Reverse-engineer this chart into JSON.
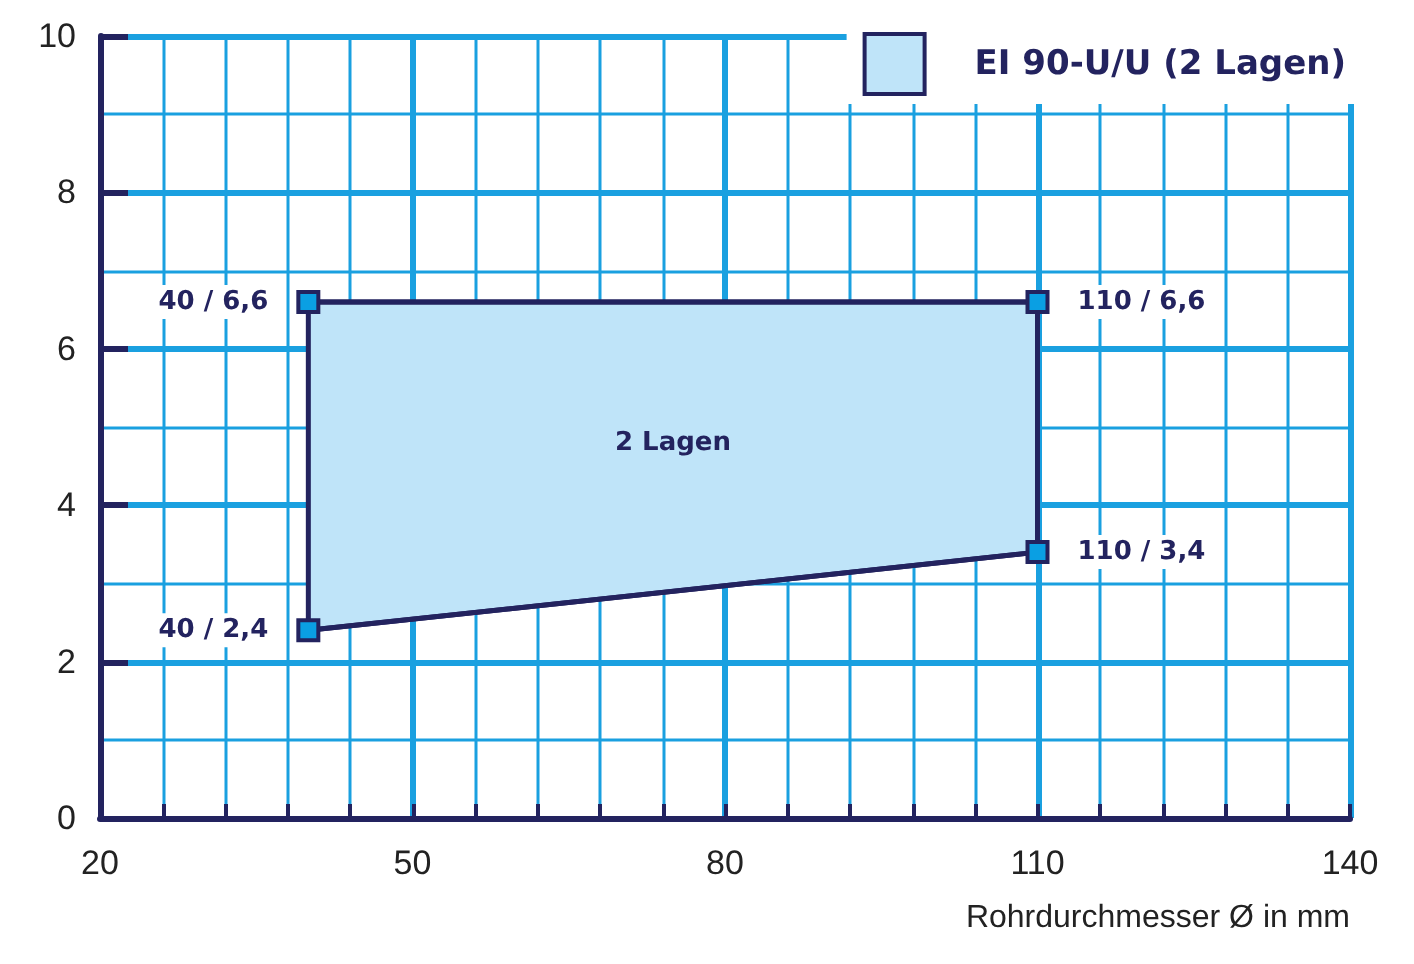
{
  "chart_data": {
    "type": "area",
    "xlabel": "Rohrdurchmesser Ø in mm",
    "x": [
      40,
      110
    ],
    "series": [
      {
        "name": "EI 90-U/U (2 Lagen)",
        "color": "#bfe4f9",
        "values": [
          6.6,
          6.6
        ],
        "value_labels": [
          "40 / 6,6",
          "110 / 6,6"
        ]
      },
      {
        "type": "line",
        "color": "#23235f",
        "values": [
          2.4,
          3.4
        ],
        "value_labels": [
          "40 / 2,4",
          "110 / 3,4"
        ]
      }
    ],
    "xlim": [
      20,
      140
    ],
    "xticks": [
      20,
      {
        "value": 26,
        "label": null
      },
      {
        "value": 32,
        "label": null
      },
      {
        "value": 38,
        "label": null
      },
      {
        "value": 44,
        "label": null
      },
      50,
      {
        "value": 56,
        "label": null
      },
      {
        "value": 62,
        "label": null
      },
      {
        "value": 68,
        "label": null
      },
      {
        "value": 74,
        "label": null
      },
      80,
      {
        "value": 86,
        "label": null
      },
      {
        "value": 92,
        "label": null
      },
      {
        "value": 98,
        "label": null
      },
      {
        "value": 104,
        "label": null
      },
      110,
      {
        "value": 116,
        "label": null
      },
      {
        "value": 122,
        "label": null
      },
      {
        "value": 128,
        "label": null
      },
      {
        "value": 134,
        "label": null
      },
      140
    ],
    "ylim": [
      0,
      10
    ],
    "yticks": [
      0,
      {
        "value": 1,
        "label": null
      },
      2,
      {
        "value": 3,
        "label": null
      },
      4,
      {
        "value": 5,
        "label": null
      },
      6,
      {
        "value": 7,
        "label": null
      },
      8,
      {
        "value": 9,
        "label": null
      },
      10
    ],
    "grid": true,
    "legend": "top right",
    "marker": "square",
    "annotations": [
      "2 Lagen"
    ]
  }
}
